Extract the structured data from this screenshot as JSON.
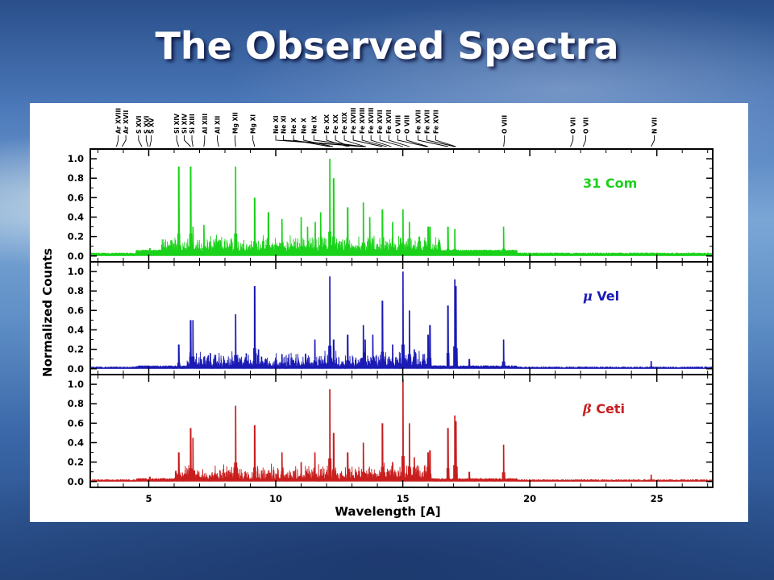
{
  "slide": {
    "title": "The Observed Spectra"
  },
  "chart_data": {
    "type": "line",
    "xlabel": "Wavelength [A]",
    "ylabel": "Normalized Counts",
    "xlim": [
      2.7,
      27.2
    ],
    "ylim": [
      -0.06,
      1.1
    ],
    "x_ticks": [
      5,
      10,
      15,
      20,
      25
    ],
    "y_ticks": [
      "0.0",
      "0.2",
      "0.4",
      "0.6",
      "0.8",
      "1.0"
    ],
    "grid": false,
    "line_ids": [
      {
        "label": "Ar XVIII",
        "wavelength": 3.73
      },
      {
        "label": "Ar XVII",
        "wavelength": 3.95
      },
      {
        "label": "S XVI",
        "wavelength": 4.73
      },
      {
        "label": "S XV",
        "wavelength": 5.04
      },
      {
        "label": "S XVI",
        "wavelength": 4.0
      },
      {
        "label": "Si XIV",
        "wavelength": 6.18
      },
      {
        "label": "Si XIII",
        "wavelength": 6.65
      },
      {
        "label": "Si XIII",
        "wavelength": 6.74
      },
      {
        "label": "Al XIII",
        "wavelength": 7.17
      },
      {
        "label": "Al XII",
        "wavelength": 7.76
      },
      {
        "label": "Mg XII",
        "wavelength": 8.42
      },
      {
        "label": "Mg XI",
        "wavelength": 9.17
      },
      {
        "label": "Ne X",
        "wavelength": 12.13
      },
      {
        "label": "Ne IX",
        "wavelength": 13.45
      },
      {
        "label": "Fe XVII",
        "wavelength": 15.01
      },
      {
        "label": "Fe XVII",
        "wavelength": 17.05
      },
      {
        "label": "O VIII",
        "wavelength": 18.97
      },
      {
        "label": "O VII",
        "wavelength": 21.6
      },
      {
        "label": "O VII",
        "wavelength": 22.1
      },
      {
        "label": "N VII",
        "wavelength": 24.78
      }
    ],
    "line_id_texts": [
      "Ar XVIII",
      "Ar XVII",
      "S XVI",
      "S XVI",
      "S XV",
      "Si XIV",
      "Si XIV",
      "Si XIII",
      "Al XIII",
      "Al XII",
      "Mg XII",
      "Mg XI",
      "Ne XI",
      "Ne XI",
      "Ne X",
      "Ne X",
      "Ne IX",
      "Fe XX",
      "Fe XX",
      "Fe XIX",
      "Fe XVIII",
      "Fe XVIII",
      "Fe XVIII",
      "Fe XVII",
      "Fe XVII",
      "O VIII",
      "O VIII",
      "Fe XVII",
      "Fe XVII",
      "Fe XVII",
      "O VIII",
      "O VII",
      "O VII",
      "N VII"
    ],
    "series": [
      {
        "name": "31 Com",
        "label_prefix": "",
        "label_text": "31 Com",
        "color": "#19d219",
        "continuum": 0.05,
        "lines": [
          [
            5.04,
            0.08
          ],
          [
            6.18,
            0.92
          ],
          [
            6.65,
            0.92
          ],
          [
            6.74,
            0.3
          ],
          [
            7.17,
            0.32
          ],
          [
            8.42,
            0.92
          ],
          [
            9.17,
            0.6
          ],
          [
            9.71,
            0.45
          ],
          [
            10.24,
            0.38
          ],
          [
            11.0,
            0.4
          ],
          [
            11.25,
            0.3
          ],
          [
            11.55,
            0.35
          ],
          [
            11.77,
            0.45
          ],
          [
            12.13,
            1.0
          ],
          [
            12.28,
            0.8
          ],
          [
            12.83,
            0.5
          ],
          [
            13.45,
            0.55
          ],
          [
            13.7,
            0.4
          ],
          [
            14.2,
            0.48
          ],
          [
            14.6,
            0.35
          ],
          [
            15.01,
            0.48
          ],
          [
            15.26,
            0.35
          ],
          [
            15.65,
            0.2
          ],
          [
            16.0,
            0.3
          ],
          [
            16.07,
            0.3
          ],
          [
            16.78,
            0.3
          ],
          [
            17.05,
            0.28
          ],
          [
            18.97,
            0.3
          ]
        ],
        "noise_from": 5.5,
        "noise_to": 16.5
      },
      {
        "name": "μ Vel",
        "label_prefix": "μ",
        "label_text": "Vel",
        "color": "#1a1ab4",
        "continuum": 0.02,
        "lines": [
          [
            6.18,
            0.25
          ],
          [
            6.65,
            0.5
          ],
          [
            6.74,
            0.5
          ],
          [
            7.17,
            0.12
          ],
          [
            8.42,
            0.56
          ],
          [
            9.17,
            0.85
          ],
          [
            9.32,
            0.2
          ],
          [
            10.24,
            0.15
          ],
          [
            11.54,
            0.3
          ],
          [
            12.13,
            0.95
          ],
          [
            12.28,
            0.3
          ],
          [
            12.83,
            0.35
          ],
          [
            13.45,
            0.45
          ],
          [
            13.52,
            0.3
          ],
          [
            13.82,
            0.35
          ],
          [
            14.2,
            0.7
          ],
          [
            14.6,
            0.25
          ],
          [
            15.01,
            1.0
          ],
          [
            15.26,
            0.6
          ],
          [
            15.45,
            0.2
          ],
          [
            15.8,
            0.15
          ],
          [
            16.0,
            0.35
          ],
          [
            16.07,
            0.45
          ],
          [
            16.78,
            0.65
          ],
          [
            17.05,
            0.92
          ],
          [
            17.1,
            0.85
          ],
          [
            17.62,
            0.1
          ],
          [
            18.97,
            0.3
          ],
          [
            24.78,
            0.08
          ]
        ],
        "noise_from": 6.5,
        "noise_to": 16.0
      },
      {
        "name": "β Ceti",
        "label_prefix": "β",
        "label_text": "Ceti",
        "color": "#c81e1e",
        "continuum": 0.02,
        "lines": [
          [
            5.04,
            0.05
          ],
          [
            6.18,
            0.3
          ],
          [
            6.65,
            0.55
          ],
          [
            6.74,
            0.45
          ],
          [
            8.42,
            0.78
          ],
          [
            9.17,
            0.58
          ],
          [
            10.24,
            0.3
          ],
          [
            11.0,
            0.2
          ],
          [
            11.54,
            0.3
          ],
          [
            12.13,
            0.95
          ],
          [
            12.28,
            0.5
          ],
          [
            12.83,
            0.3
          ],
          [
            13.45,
            0.4
          ],
          [
            14.2,
            0.6
          ],
          [
            14.6,
            0.2
          ],
          [
            15.01,
            1.05
          ],
          [
            15.26,
            0.6
          ],
          [
            15.45,
            0.25
          ],
          [
            16.0,
            0.3
          ],
          [
            16.07,
            0.32
          ],
          [
            16.78,
            0.55
          ],
          [
            17.05,
            0.68
          ],
          [
            17.1,
            0.62
          ],
          [
            17.62,
            0.1
          ],
          [
            18.97,
            0.38
          ],
          [
            24.78,
            0.07
          ]
        ],
        "noise_from": 6.0,
        "noise_to": 16.0
      }
    ]
  }
}
